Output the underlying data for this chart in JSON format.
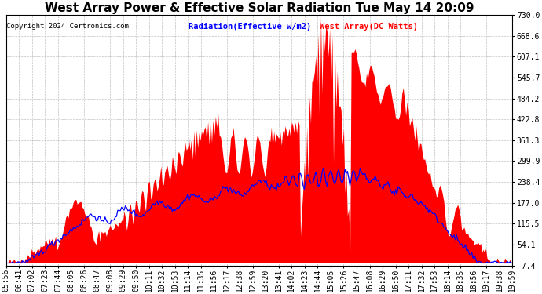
{
  "title": "West Array Power & Effective Solar Radiation Tue May 14 20:09",
  "copyright": "Copyright 2024 Certronics.com",
  "legend_radiation": "Radiation(Effective w/m2)",
  "legend_west": "West Array(DC Watts)",
  "legend_radiation_color": "blue",
  "legend_west_color": "red",
  "yticks": [
    730.0,
    668.6,
    607.1,
    545.7,
    484.2,
    422.8,
    361.3,
    299.9,
    238.4,
    177.0,
    115.5,
    54.1,
    -7.4
  ],
  "ymin": -7.4,
  "ymax": 730.0,
  "background_color": "#ffffff",
  "plot_bg_color": "#ffffff",
  "grid_color": "#bbbbbb",
  "fill_color": "red",
  "line_color": "blue",
  "title_fontsize": 11,
  "tick_fontsize": 7,
  "time_labels": [
    "05:56",
    "06:41",
    "07:02",
    "07:23",
    "07:44",
    "08:05",
    "08:26",
    "08:47",
    "09:08",
    "09:29",
    "09:50",
    "10:11",
    "10:32",
    "10:53",
    "11:14",
    "11:35",
    "11:56",
    "12:17",
    "12:38",
    "12:59",
    "13:20",
    "13:41",
    "14:02",
    "14:23",
    "14:44",
    "15:05",
    "15:26",
    "15:47",
    "16:08",
    "16:29",
    "16:50",
    "17:11",
    "17:32",
    "17:53",
    "18:14",
    "18:35",
    "18:56",
    "19:17",
    "19:38",
    "19:59"
  ]
}
